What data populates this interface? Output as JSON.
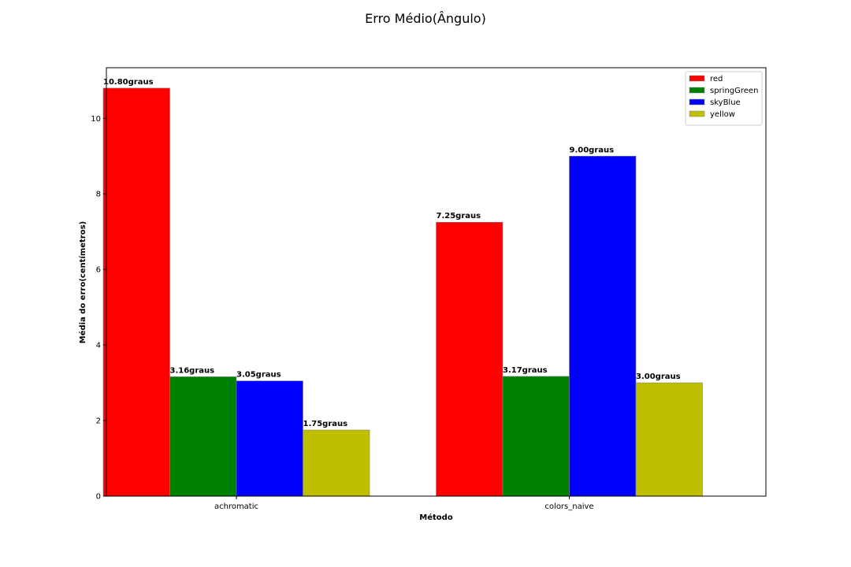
{
  "chart_data": {
    "type": "bar",
    "title": "Erro Médio(Ângulo)",
    "xlabel": "Método",
    "ylabel": "Média do erro(centímetros)",
    "categories": [
      "achromatic",
      "colors_naive"
    ],
    "series": [
      {
        "name": "red",
        "color": "#ff0000",
        "values": [
          10.8,
          7.25
        ],
        "labels": [
          "10.80graus",
          "7.25graus"
        ]
      },
      {
        "name": "springGreen",
        "color": "#008000",
        "values": [
          3.16,
          3.17
        ],
        "labels": [
          "3.16graus",
          "3.17graus"
        ]
      },
      {
        "name": "skyBlue",
        "color": "#0000ff",
        "values": [
          3.05,
          9.0
        ],
        "labels": [
          "3.05graus",
          "9.00graus"
        ]
      },
      {
        "name": "yellow",
        "color": "#bfbf00",
        "values": [
          1.75,
          3.0
        ],
        "labels": [
          "1.75graus",
          "3.00graus"
        ]
      }
    ],
    "ylim": [
      0,
      11.34
    ],
    "yticks": [
      0,
      2,
      4,
      6,
      8,
      10
    ],
    "grid": false,
    "legend_position": "top-right"
  }
}
